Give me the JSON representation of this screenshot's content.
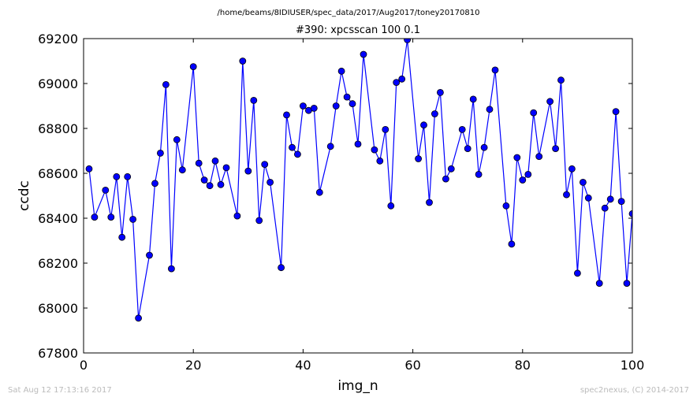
{
  "figure": {
    "suptitle": "/home/beams/8IDIUSER/spec_data/2017/Aug2017/toney20170810",
    "footer_left": "Sat Aug 12 17:13:16 2017",
    "footer_right": "spec2nexus, (C) 2014-2017"
  },
  "chart_data": {
    "type": "line",
    "title": "#390: xpcsscan 100 0.1",
    "xlabel": "img_n",
    "ylabel": "ccdc",
    "xlim": [
      0,
      100
    ],
    "ylim": [
      67800,
      69200
    ],
    "xticks": [
      0,
      20,
      40,
      60,
      80,
      100
    ],
    "yticks": [
      67800,
      68000,
      68200,
      68400,
      68600,
      68800,
      69000,
      69200
    ],
    "grid": false,
    "colors": {
      "line": "#0000ff",
      "marker": "#0000ff",
      "marker_edge": "#000000"
    },
    "series": [
      {
        "x": [
          1,
          2,
          4,
          5,
          6,
          7,
          8,
          9,
          10,
          12,
          13,
          14,
          15,
          16,
          17,
          18,
          20,
          21,
          22,
          23,
          24,
          25,
          26,
          28,
          29,
          30,
          31,
          32,
          33,
          34,
          36,
          37,
          38,
          39,
          40,
          41,
          42,
          43,
          45,
          46,
          47,
          48,
          49,
          50,
          51,
          53,
          54,
          55,
          56,
          57,
          58,
          59,
          61,
          62,
          63,
          64,
          65,
          66,
          67,
          69,
          70,
          71,
          72,
          73,
          74,
          75,
          77,
          78,
          79,
          80,
          81,
          82,
          83,
          85,
          86,
          87,
          88,
          89,
          90,
          91,
          92,
          94,
          95,
          96,
          97,
          98,
          99,
          100
        ],
        "y": [
          68620,
          68405,
          68525,
          68405,
          68585,
          68315,
          68585,
          68395,
          67955,
          68235,
          68555,
          68690,
          68995,
          68175,
          68750,
          68615,
          69075,
          68645,
          68570,
          68545,
          68655,
          68550,
          68625,
          68410,
          69100,
          68610,
          68925,
          68390,
          68640,
          68560,
          68180,
          68860,
          68715,
          68685,
          68900,
          68880,
          68890,
          68515,
          68720,
          68900,
          69055,
          68940,
          68910,
          68730,
          69130,
          68705,
          68655,
          68795,
          68455,
          69005,
          69020,
          69195,
          68665,
          68815,
          68470,
          68865,
          68960,
          68575,
          68620,
          68795,
          68710,
          68930,
          68595,
          68715,
          68885,
          69060,
          68455,
          68285,
          68670,
          68570,
          68595,
          68870,
          68675,
          68920,
          68710,
          69015,
          68505,
          68620,
          68155,
          68560,
          68490,
          68110,
          68445,
          68485,
          68875,
          68475,
          68110,
          68420
        ]
      }
    ]
  }
}
